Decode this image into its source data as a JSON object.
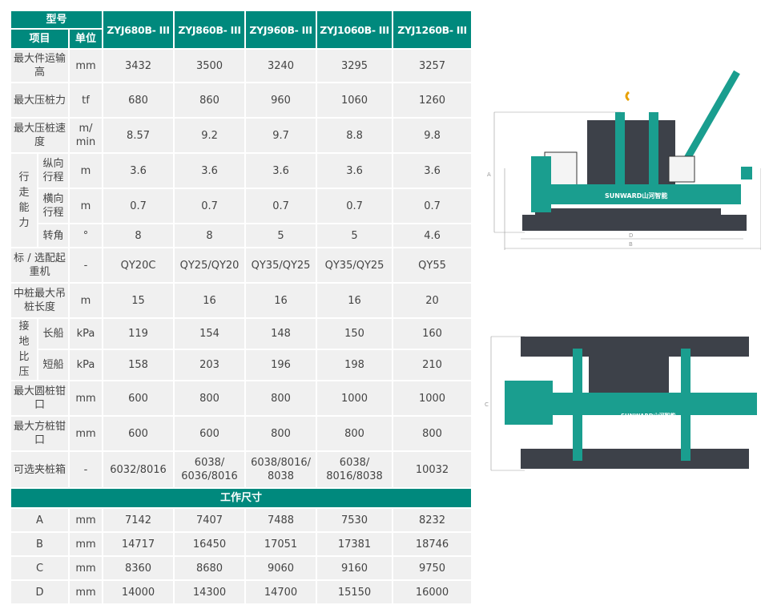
{
  "header": {
    "model_label": "型号",
    "item_label": "项目",
    "unit_label": "单位",
    "models": [
      "ZYJ680B- III",
      "ZYJ860B- III",
      "ZYJ960B- III",
      "ZYJ1060B- III",
      "ZYJ1260B- III"
    ]
  },
  "rows": [
    {
      "item": "最大件运输高",
      "unit": "mm",
      "values": [
        "3432",
        "3500",
        "3240",
        "3295",
        "3257"
      ]
    },
    {
      "item": "最大压桩力",
      "unit": "tf",
      "values": [
        "680",
        "860",
        "960",
        "1060",
        "1260"
      ]
    },
    {
      "item": "最大压桩速度",
      "unit": "m/ min",
      "values": [
        "8.57",
        "9.2",
        "9.7",
        "8.8",
        "9.8"
      ]
    }
  ],
  "travel": {
    "group": "行走能力",
    "rows": [
      {
        "item": "纵向行程",
        "unit": "m",
        "values": [
          "3.6",
          "3.6",
          "3.6",
          "3.6",
          "3.6"
        ]
      },
      {
        "item": "横向行程",
        "unit": "m",
        "values": [
          "0.7",
          "0.7",
          "0.7",
          "0.7",
          "0.7"
        ]
      },
      {
        "item": "转角",
        "unit": "°",
        "values": [
          "8",
          "8",
          "5",
          "5",
          "4.6"
        ]
      }
    ]
  },
  "rows2": [
    {
      "item": "标 / 选配起重机",
      "unit": "-",
      "values": [
        "QY20C",
        "QY25/QY20",
        "QY35/QY25",
        "QY35/QY25",
        "QY55"
      ]
    },
    {
      "item": "中桩最大吊桩长度",
      "unit": "m",
      "values": [
        "15",
        "16",
        "16",
        "16",
        "20"
      ]
    }
  ],
  "pressure": {
    "group": "接地比压",
    "rows": [
      {
        "item": "长船",
        "unit": "kPa",
        "values": [
          "119",
          "154",
          "148",
          "150",
          "160"
        ]
      },
      {
        "item": "短船",
        "unit": "kPa",
        "values": [
          "158",
          "203",
          "196",
          "198",
          "210"
        ]
      }
    ]
  },
  "rows3": [
    {
      "item": "最大圆桩钳口",
      "unit": "mm",
      "values": [
        "600",
        "800",
        "800",
        "1000",
        "1000"
      ]
    },
    {
      "item": "最大方桩钳口",
      "unit": "mm",
      "values": [
        "600",
        "600",
        "800",
        "800",
        "800"
      ]
    },
    {
      "item": "可选夹桩箱",
      "unit": "-",
      "values": [
        "6032/8016",
        "6038/ 6036/8016",
        "6038/8016/ 8038",
        "6038/ 8016/8038",
        "10032"
      ]
    }
  ],
  "dims": {
    "title": "工作尺寸",
    "rows": [
      {
        "item": "A",
        "unit": "mm",
        "values": [
          "7142",
          "7407",
          "7488",
          "7530",
          "8232"
        ]
      },
      {
        "item": "B",
        "unit": "mm",
        "values": [
          "14717",
          "16450",
          "17051",
          "17381",
          "18746"
        ]
      },
      {
        "item": "C",
        "unit": "mm",
        "values": [
          "8360",
          "8680",
          "9060",
          "9160",
          "9750"
        ]
      },
      {
        "item": "D",
        "unit": "mm",
        "values": [
          "14000",
          "14300",
          "14700",
          "15150",
          "16000"
        ]
      }
    ]
  },
  "drawing": {
    "brand": "SUNWARD山河智能",
    "dim_labels": [
      "A",
      "B",
      "C",
      "D"
    ],
    "colors": {
      "teal": "#1a9e8f",
      "dark": "#3d4149"
    }
  }
}
